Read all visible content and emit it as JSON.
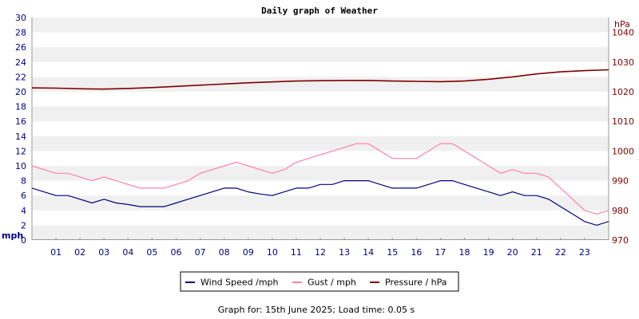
{
  "chart_data": {
    "type": "line",
    "title": "Daily graph of Weather",
    "left_axis": {
      "unit_label": "mph",
      "range": [
        0,
        30
      ],
      "ticks": [
        0,
        2,
        4,
        6,
        8,
        10,
        12,
        14,
        16,
        18,
        20,
        22,
        24,
        26,
        28,
        30
      ]
    },
    "right_axis": {
      "unit_label": "hPa",
      "range": [
        970,
        1045
      ],
      "ticks": [
        970,
        980,
        990,
        1000,
        1010,
        1020,
        1030,
        1040
      ]
    },
    "x_axis": {
      "range": [
        0,
        24
      ],
      "tick_labels": [
        "01",
        "02",
        "03",
        "04",
        "05",
        "06",
        "07",
        "08",
        "09",
        "10",
        "11",
        "12",
        "13",
        "14",
        "15",
        "16",
        "17",
        "18",
        "19",
        "20",
        "21",
        "22",
        "23"
      ]
    },
    "series": [
      {
        "name": "Wind Speed /mph",
        "axis": "left",
        "color": "#000080",
        "x": [
          0,
          0.5,
          1,
          1.5,
          2,
          2.5,
          3,
          3.5,
          4,
          4.5,
          5,
          5.5,
          6,
          6.5,
          7,
          7.5,
          8,
          8.5,
          9,
          9.5,
          10,
          10.5,
          11,
          11.5,
          12,
          12.5,
          13,
          13.5,
          14,
          14.5,
          15,
          15.5,
          16,
          16.5,
          17,
          17.5,
          18,
          18.5,
          19,
          19.5,
          20,
          20.5,
          21,
          21.5,
          22,
          22.5,
          23,
          23.5,
          24
        ],
        "values": [
          7,
          6.5,
          6,
          6,
          5.5,
          5,
          5.5,
          5,
          4.8,
          4.5,
          4.5,
          4.5,
          5,
          5.5,
          6,
          6.5,
          7,
          7,
          6.5,
          6.2,
          6,
          6.5,
          7,
          7,
          7.5,
          7.5,
          8,
          8,
          8,
          7.5,
          7,
          7,
          7,
          7.5,
          8,
          8,
          7.5,
          7,
          6.5,
          6,
          6.5,
          6,
          6,
          5.5,
          4.5,
          3.5,
          2.5,
          2,
          2.5
        ]
      },
      {
        "name": "Gust / mph",
        "axis": "left",
        "color": "#ff80a8",
        "x": [
          0,
          0.5,
          1,
          1.5,
          2,
          2.5,
          3,
          3.5,
          4,
          4.5,
          5,
          5.5,
          6,
          6.5,
          7,
          7.5,
          8,
          8.5,
          9,
          9.5,
          10,
          10.5,
          11,
          11.5,
          12,
          12.5,
          13,
          13.5,
          14,
          14.5,
          15,
          15.5,
          16,
          16.5,
          17,
          17.5,
          18,
          18.5,
          19,
          19.5,
          20,
          20.5,
          21,
          21.5,
          22,
          22.5,
          23,
          23.5,
          24
        ],
        "values": [
          10,
          9.5,
          9,
          9,
          8.5,
          8,
          8.5,
          8,
          7.5,
          7,
          7,
          7,
          7.5,
          8,
          9,
          9.5,
          10,
          10.5,
          10,
          9.5,
          9,
          9.5,
          10.5,
          11,
          11.5,
          12,
          12.5,
          13,
          13,
          12,
          11,
          11,
          11,
          12,
          13,
          13,
          12,
          11,
          10,
          9,
          9.5,
          9,
          9,
          8.5,
          7,
          5.5,
          4,
          3.5,
          4
        ]
      },
      {
        "name": "Pressure / hPa",
        "axis": "right",
        "color": "#800000",
        "x": [
          0,
          1,
          2,
          3,
          4,
          5,
          6,
          7,
          8,
          9,
          10,
          11,
          12,
          13,
          14,
          15,
          16,
          17,
          18,
          19,
          20,
          21,
          22,
          23,
          24
        ],
        "values": [
          1021.3,
          1021.2,
          1021.0,
          1020.9,
          1021.1,
          1021.4,
          1021.8,
          1022.2,
          1022.6,
          1023.0,
          1023.3,
          1023.6,
          1023.7,
          1023.8,
          1023.8,
          1023.6,
          1023.5,
          1023.4,
          1023.6,
          1024.2,
          1025.0,
          1026.0,
          1026.7,
          1027.1,
          1027.4
        ]
      }
    ]
  },
  "footer": "Graph for: 15th June 2025; Load time: 0.05 s"
}
